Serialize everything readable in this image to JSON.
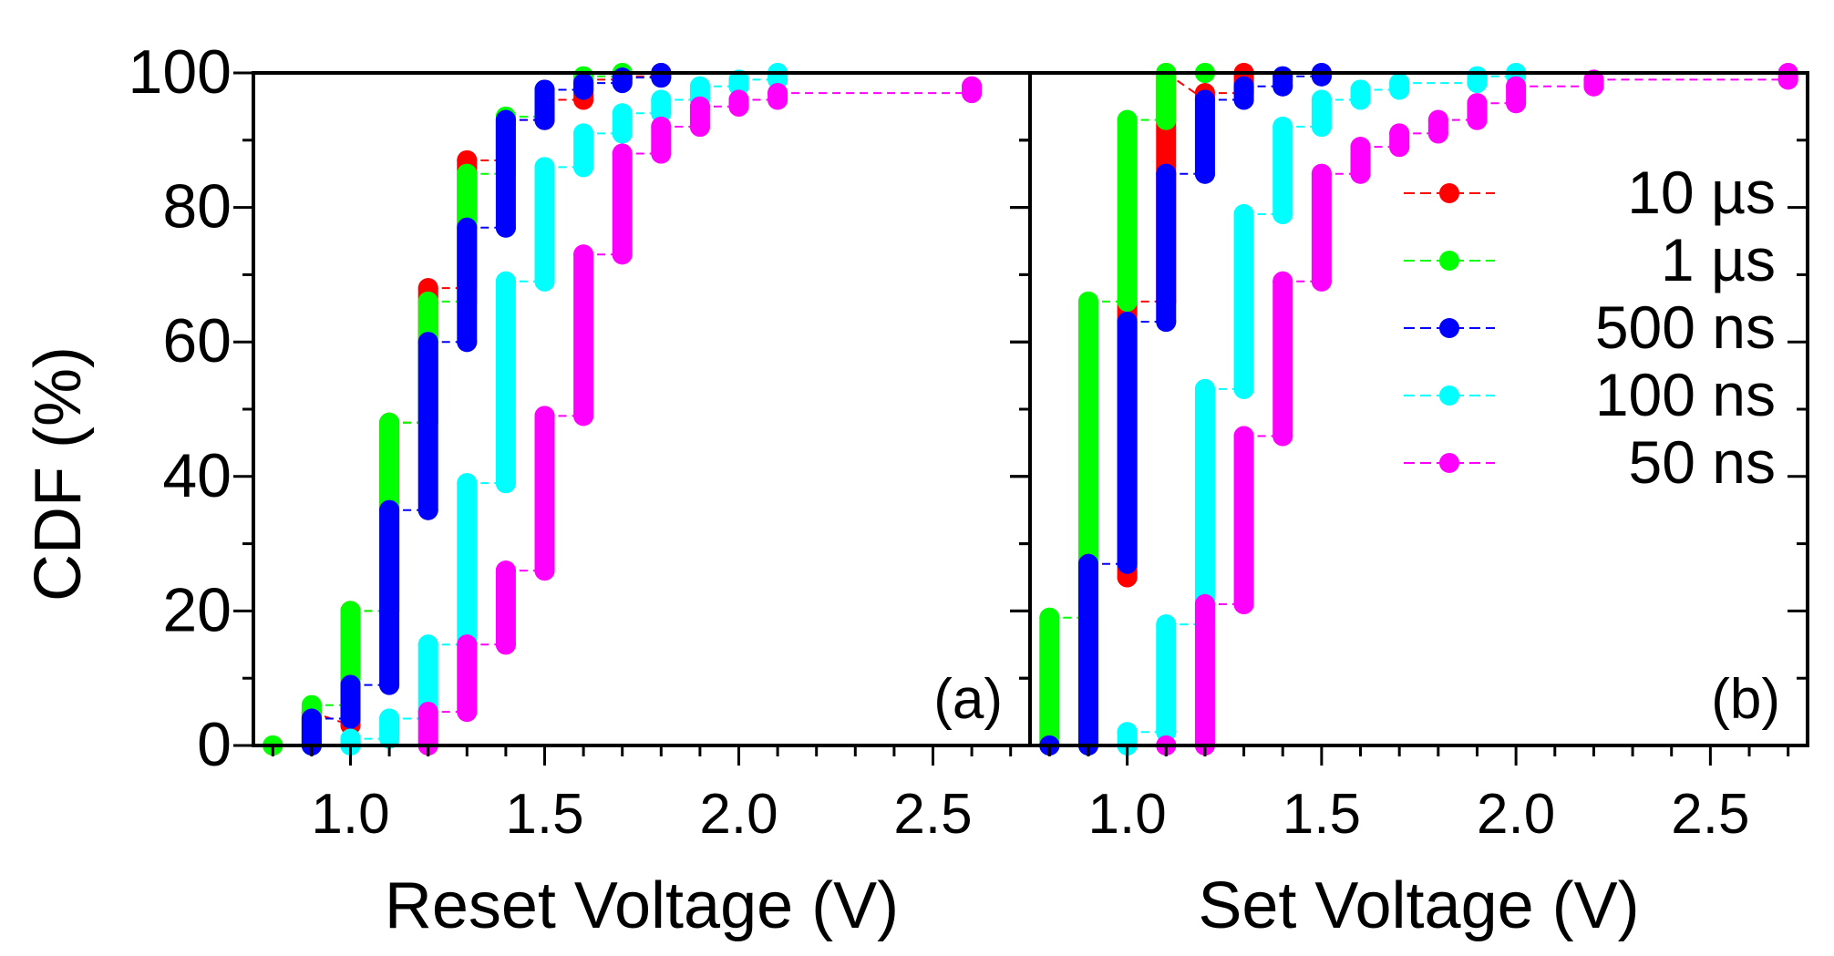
{
  "figure": {
    "y_axis_label": "CDF (%)",
    "y_ticks": [
      "0",
      "20",
      "40",
      "60",
      "80",
      "100"
    ]
  },
  "legend": {
    "position": "right of panel (b)",
    "items": [
      {
        "label": "10 µs",
        "color": "#ff0000"
      },
      {
        "label": "1 µs",
        "color": "#00ff00"
      },
      {
        "label": "500 ns",
        "color": "#0000ff"
      },
      {
        "label": "100 ns",
        "color": "#00ffff"
      },
      {
        "label": "50 ns",
        "color": "#ff00ff"
      }
    ]
  },
  "chart_data": [
    {
      "type": "scatter",
      "panel_label": "(a)",
      "xlabel": "Reset Voltage (V)",
      "ylabel": "CDF (%)",
      "xlim": [
        0.75,
        2.75
      ],
      "ylim": [
        0,
        100
      ],
      "x_ticks": [
        "1.0",
        "1.5",
        "2.0",
        "2.5"
      ],
      "series": [
        {
          "name": "10 µs",
          "color": "#ff0000",
          "steps": [
            [
              0.8,
              0,
              0
            ],
            [
              0.9,
              0,
              5
            ],
            [
              1.0,
              3,
              20
            ],
            [
              1.1,
              20,
              48
            ],
            [
              1.2,
              48,
              68
            ],
            [
              1.3,
              68,
              87
            ],
            [
              1.4,
              87,
              93
            ],
            [
              1.5,
              93,
              96
            ],
            [
              1.6,
              96,
              99
            ],
            [
              1.7,
              99,
              99.5
            ],
            [
              1.8,
              99.5,
              100
            ]
          ]
        },
        {
          "name": "1 µs",
          "color": "#00ff00",
          "steps": [
            [
              0.8,
              0,
              0
            ],
            [
              0.9,
              0,
              6
            ],
            [
              1.0,
              6,
              20
            ],
            [
              1.1,
              20,
              48
            ],
            [
              1.2,
              48,
              66
            ],
            [
              1.3,
              66,
              85
            ],
            [
              1.4,
              85,
              93.5
            ],
            [
              1.5,
              93.5,
              97.5
            ],
            [
              1.6,
              97.5,
              99.5
            ],
            [
              1.7,
              99.5,
              100
            ]
          ]
        },
        {
          "name": "500 ns",
          "color": "#0000ff",
          "steps": [
            [
              0.9,
              0,
              4
            ],
            [
              1.0,
              4,
              9
            ],
            [
              1.1,
              9,
              35
            ],
            [
              1.2,
              35,
              60
            ],
            [
              1.3,
              60,
              77
            ],
            [
              1.4,
              77,
              93
            ],
            [
              1.5,
              93,
              97.5
            ],
            [
              1.6,
              97.5,
              98.5
            ],
            [
              1.7,
              98.5,
              99.3
            ],
            [
              1.8,
              99.3,
              100
            ]
          ]
        },
        {
          "name": "100 ns",
          "color": "#00ffff",
          "steps": [
            [
              1.0,
              0,
              1
            ],
            [
              1.1,
              1,
              4
            ],
            [
              1.2,
              4,
              15
            ],
            [
              1.3,
              15,
              39
            ],
            [
              1.4,
              39,
              69
            ],
            [
              1.5,
              69,
              86
            ],
            [
              1.6,
              86,
              91
            ],
            [
              1.7,
              91,
              94
            ],
            [
              1.8,
              94,
              96
            ],
            [
              1.9,
              96,
              98
            ],
            [
              2.0,
              98,
              99
            ],
            [
              2.1,
              99,
              100
            ]
          ]
        },
        {
          "name": "50 ns",
          "color": "#ff00ff",
          "steps": [
            [
              1.2,
              0,
              5
            ],
            [
              1.3,
              5,
              15
            ],
            [
              1.4,
              15,
              26
            ],
            [
              1.5,
              26,
              49
            ],
            [
              1.6,
              49,
              73
            ],
            [
              1.7,
              73,
              88
            ],
            [
              1.8,
              88,
              92
            ],
            [
              1.9,
              92,
              95
            ],
            [
              2.0,
              95,
              96
            ],
            [
              2.1,
              96,
              97
            ],
            [
              2.6,
              97,
              98
            ]
          ]
        }
      ]
    },
    {
      "type": "scatter",
      "panel_label": "(b)",
      "xlabel": "Set Voltage (V)",
      "ylabel": "CDF (%)",
      "xlim": [
        0.75,
        2.75
      ],
      "ylim": [
        0,
        100
      ],
      "x_ticks": [
        "1.0",
        "1.5",
        "2.0",
        "2.5"
      ],
      "series": [
        {
          "name": "10 µs",
          "color": "#ff0000",
          "steps": [
            [
              1.0,
              25,
              66
            ],
            [
              1.1,
              66,
              100
            ],
            [
              1.2,
              96,
              97
            ],
            [
              1.3,
              97,
              100
            ]
          ]
        },
        {
          "name": "1 µs",
          "color": "#00ff00",
          "steps": [
            [
              0.8,
              0,
              19
            ],
            [
              0.9,
              19,
              66
            ],
            [
              1.0,
              66,
              93
            ],
            [
              1.1,
              93,
              100
            ],
            [
              1.2,
              100,
              100
            ]
          ]
        },
        {
          "name": "500 ns",
          "color": "#0000ff",
          "steps": [
            [
              0.8,
              0,
              0
            ],
            [
              0.9,
              0,
              27
            ],
            [
              1.0,
              27,
              63
            ],
            [
              1.1,
              63,
              85
            ],
            [
              1.2,
              85,
              96
            ],
            [
              1.3,
              96,
              98
            ],
            [
              1.4,
              98,
              99.5
            ],
            [
              1.5,
              99.5,
              100
            ]
          ]
        },
        {
          "name": "100 ns",
          "color": "#00ffff",
          "steps": [
            [
              1.0,
              0,
              2
            ],
            [
              1.1,
              2,
              18
            ],
            [
              1.2,
              18,
              53
            ],
            [
              1.3,
              53,
              79
            ],
            [
              1.4,
              79,
              92
            ],
            [
              1.5,
              92,
              96
            ],
            [
              1.6,
              96,
              97.5
            ],
            [
              1.7,
              97.5,
              98.5
            ],
            [
              1.9,
              98.5,
              99.5
            ],
            [
              2.0,
              99.5,
              100
            ]
          ]
        },
        {
          "name": "50 ns",
          "color": "#ff00ff",
          "steps": [
            [
              1.1,
              0,
              0
            ],
            [
              1.2,
              0,
              21
            ],
            [
              1.3,
              21,
              46
            ],
            [
              1.4,
              46,
              69
            ],
            [
              1.5,
              69,
              85
            ],
            [
              1.6,
              85,
              89
            ],
            [
              1.7,
              89,
              91
            ],
            [
              1.8,
              91,
              93
            ],
            [
              1.9,
              93,
              95.5
            ],
            [
              2.0,
              95.5,
              98
            ],
            [
              2.2,
              98,
              99
            ],
            [
              2.7,
              99,
              100
            ]
          ]
        }
      ]
    }
  ]
}
